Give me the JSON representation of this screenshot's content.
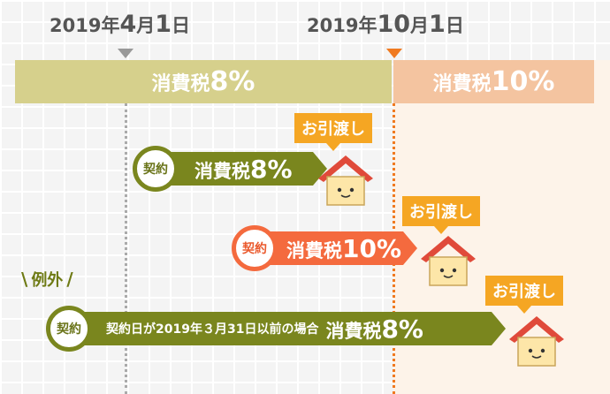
{
  "dates": {
    "april": {
      "year": "2019",
      "nen": "年",
      "month": "4",
      "tsuki": "月",
      "day": "1",
      "hi": "日"
    },
    "october": {
      "year": "2019",
      "nen": "年",
      "month": "10",
      "tsuki": "月",
      "day": "1",
      "hi": "日"
    }
  },
  "bands": {
    "tax8": {
      "label": "消費税",
      "rate": "8%"
    },
    "tax10": {
      "label": "消費税",
      "rate": "10%"
    }
  },
  "rows": [
    {
      "badge": "契約",
      "tax_label": "消費税",
      "tax_rate": "8%",
      "handover": "お引渡し"
    },
    {
      "badge": "契約",
      "tax_label": "消費税",
      "tax_rate": "10%",
      "handover": "お引渡し"
    },
    {
      "badge": "契約",
      "condition": "契約日が2019年３月31日以前の場合",
      "tax_label": "消費税",
      "tax_rate": "8%",
      "handover": "お引渡し"
    }
  ],
  "exception": {
    "label": "例外"
  },
  "colors": {
    "green": "#7a861e",
    "orange": "#f46a3e",
    "handover": "#f5a623",
    "band8": "#d6d08c",
    "band10": "#f4c4a0",
    "roof": "#e04a3a",
    "house": "#fde6a8"
  },
  "icons": {
    "house": "house-icon",
    "date_marker": "triangle-down-icon"
  }
}
